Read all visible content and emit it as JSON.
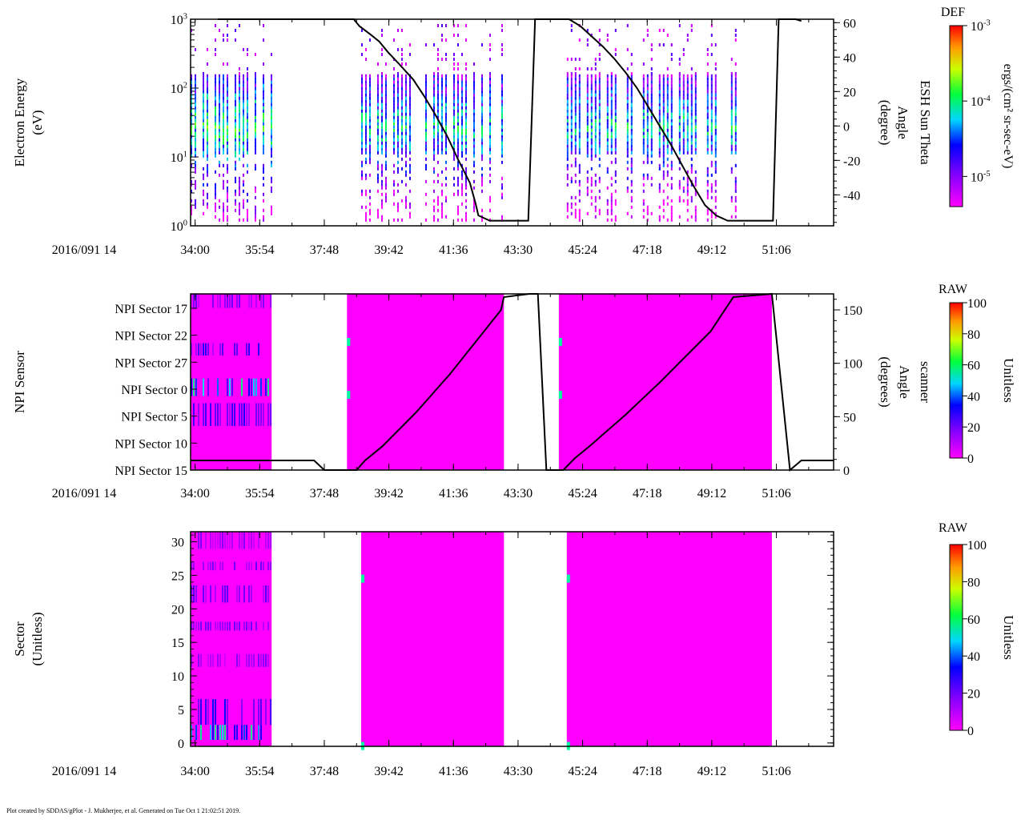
{
  "footer": "Plot created by SDDAS/gPlot - J. Mukherjee, et al.  Generated on Tue Oct 1 21:02:51 2019.",
  "chart_data": [
    {
      "type": "heatmap",
      "panel": "electron-energy",
      "date_label": "2016/091 14",
      "x_ticks": [
        "34:00",
        "35:54",
        "37:48",
        "39:42",
        "41:36",
        "43:30",
        "45:24",
        "47:18",
        "49:12",
        "51:06"
      ],
      "x_range": [
        "33:52",
        "52:47"
      ],
      "ylabel": [
        "Electron Energy",
        "(eV)"
      ],
      "yscale": "log",
      "ylim": [
        1,
        1000
      ],
      "y_ticks": [
        {
          "base": "10",
          "exp": "0"
        },
        {
          "base": "10",
          "exp": "1"
        },
        {
          "base": "10",
          "exp": "2"
        },
        {
          "base": "10",
          "exp": "3"
        }
      ],
      "y2label": [
        "ESH Sun Theta",
        "Angle",
        "(degree)"
      ],
      "y2lim": [
        -58,
        62
      ],
      "y2_ticks": [
        "-40",
        "-20",
        "0",
        "20",
        "40",
        "60"
      ],
      "colorbar": {
        "title": "DEF",
        "label": "ergs/(cm² sr-sec-eV)",
        "scale": "log",
        "ticks": [
          {
            "base": "10",
            "exp": "-5"
          },
          {
            "base": "10",
            "exp": "-4"
          },
          {
            "base": "10",
            "exp": "-3"
          }
        ]
      },
      "data_blocks": [
        [
          "33:52",
          "36:15"
        ],
        [
          "38:53",
          "43:05"
        ],
        [
          "44:56",
          "50:02"
        ]
      ],
      "line_series": {
        "x": [
          "34:40",
          "37:30",
          "38:40",
          "38:50",
          "39:10",
          "39:25",
          "39:40",
          "40:00",
          "40:25",
          "40:45",
          "41:05",
          "41:25",
          "41:45",
          "42:05",
          "42:15",
          "42:20",
          "42:40",
          "43:30",
          "43:48",
          "44:00",
          "44:30",
          "45:00",
          "45:20",
          "45:40",
          "46:00",
          "46:20",
          "46:40",
          "47:00",
          "47:20",
          "47:40",
          "48:00",
          "48:20",
          "48:40",
          "49:00",
          "49:20",
          "49:40",
          "50:00",
          "50:40",
          "51:00",
          "51:10",
          "51:40",
          "51:50"
        ],
        "y": [
          62,
          62,
          62,
          58,
          53,
          49,
          43,
          36,
          27,
          17,
          6,
          -6,
          -20,
          -33,
          -45,
          -52,
          -55,
          -55,
          -55,
          62,
          62,
          62,
          58,
          52,
          46,
          39,
          31,
          22,
          11,
          0,
          -11,
          -23,
          -35,
          -46,
          -52,
          -55,
          -55,
          -55,
          -55,
          62,
          62,
          61
        ]
      }
    },
    {
      "type": "heatmap",
      "panel": "npi-sensor",
      "date_label": "2016/091 14",
      "x_ticks": [
        "34:00",
        "35:54",
        "37:48",
        "39:42",
        "41:36",
        "43:30",
        "45:24",
        "47:18",
        "49:12",
        "51:06"
      ],
      "x_range": [
        "33:52",
        "52:47"
      ],
      "ylabel": [
        "NPI Sensor"
      ],
      "y_ticks": [
        "NPI Sector 15",
        "NPI Sector 10",
        "NPI Sector 5",
        "NPI Sector 0",
        "NPI Sector 27",
        "NPI Sector 22",
        "NPI Sector 17"
      ],
      "y2label": [
        "scanner",
        "Angle",
        "(degrees)"
      ],
      "y2lim": [
        0,
        165
      ],
      "y2_ticks": [
        "0",
        "50",
        "100",
        "150"
      ],
      "colorbar": {
        "title": "RAW",
        "label": "Unitless",
        "ticks": [
          "0",
          "20",
          "40",
          "60",
          "80",
          "100"
        ]
      },
      "data_blocks": [
        [
          "33:52",
          "36:15"
        ],
        [
          "38:28",
          "43:05"
        ],
        [
          "44:42",
          "50:58"
        ]
      ],
      "line_series": {
        "x": [
          "33:52",
          "37:30",
          "37:48",
          "38:30",
          "38:45",
          "39:00",
          "39:30",
          "40:00",
          "40:30",
          "41:00",
          "41:30",
          "42:00",
          "42:30",
          "43:00",
          "43:05",
          "43:50",
          "44:05",
          "44:20",
          "44:50",
          "45:10",
          "45:40",
          "46:10",
          "46:40",
          "47:10",
          "47:40",
          "48:10",
          "48:40",
          "49:10",
          "49:30",
          "49:50",
          "50:58",
          "51:30",
          "51:50",
          "52:47"
        ],
        "y": [
          9,
          9,
          0,
          0,
          0,
          9,
          22,
          38,
          54,
          72,
          90,
          110,
          130,
          150,
          162,
          165,
          165,
          0,
          0,
          11,
          24,
          38,
          52,
          67,
          82,
          98,
          114,
          130,
          146,
          162,
          165,
          0,
          9,
          9
        ]
      }
    },
    {
      "type": "heatmap",
      "panel": "sector",
      "date_label": "2016/091 14",
      "x_ticks": [
        "34:00",
        "35:54",
        "37:48",
        "39:42",
        "41:36",
        "43:30",
        "45:24",
        "47:18",
        "49:12",
        "51:06"
      ],
      "x_range": [
        "33:52",
        "52:47"
      ],
      "ylabel": [
        "Sector",
        "(Unitless)"
      ],
      "ylim": [
        -0.5,
        31.5
      ],
      "y_ticks": [
        "0",
        "5",
        "10",
        "15",
        "20",
        "25",
        "30"
      ],
      "colorbar": {
        "title": "RAW",
        "label": "Unitless",
        "ticks": [
          "0",
          "20",
          "40",
          "60",
          "80",
          "100"
        ]
      },
      "data_blocks": [
        [
          "33:52",
          "36:15"
        ],
        [
          "38:53",
          "43:05"
        ],
        [
          "44:56",
          "50:58"
        ]
      ]
    }
  ]
}
